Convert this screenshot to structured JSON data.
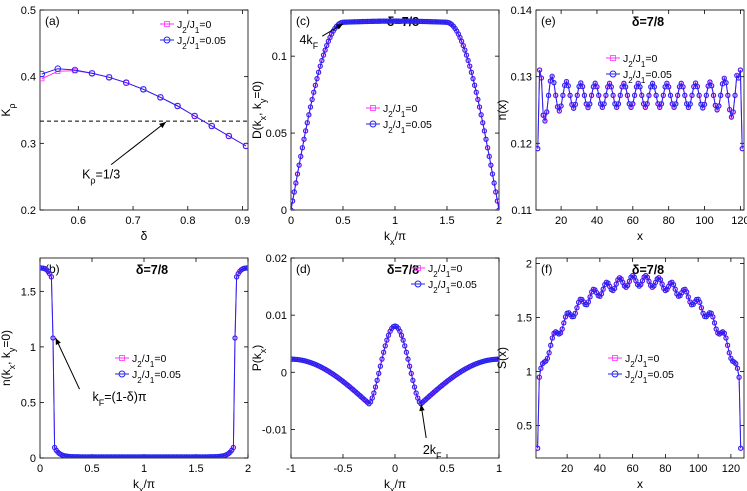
{
  "figure": {
    "series_colors": {
      "j0": "#ff33ff",
      "j05": "#2222ee"
    },
    "legend_labels": {
      "j0_html": "J<tspan baseline-shift='sub' font-size='8'>2</tspan>/J<tspan baseline-shift='sub' font-size='8'>1</tspan>=0",
      "j05_html": "J<tspan baseline-shift='sub' font-size='8'>2</tspan>/J<tspan baseline-shift='sub' font-size='8'>1</tspan>=0.05"
    }
  },
  "chart_data": [
    {
      "id": "a",
      "panel_label": "(a)",
      "title": "",
      "type": "line",
      "xlabel": "δ",
      "ylabel_html": "K<tspan baseline-shift='sub' font-size='9'>ρ</tspan>",
      "xlim": [
        0.53,
        0.91
      ],
      "ylim": [
        0.2,
        0.5
      ],
      "xticks": [
        0.6,
        0.7,
        0.8,
        0.9
      ],
      "xticklabels": [
        "0.6",
        "0.7",
        "0.8",
        "0.9"
      ],
      "yticks": [
        0.2,
        0.3,
        0.4,
        0.5
      ],
      "yticklabels": [
        "0.2",
        "0.3",
        "0.4",
        "0.5"
      ],
      "hline": 0.3333,
      "series": [
        {
          "name": "J2/J1=0",
          "x": [
            0.5333,
            0.5625,
            0.5938,
            0.625,
            0.6563,
            0.6875,
            0.7188,
            0.75,
            0.7813,
            0.8125,
            0.8438,
            0.875,
            0.9063
          ],
          "y": [
            0.397,
            0.408,
            0.409,
            0.405,
            0.399,
            0.391,
            0.381,
            0.369,
            0.356,
            0.341,
            0.326,
            0.311,
            0.296
          ]
        },
        {
          "name": "J2/J1=0.05",
          "x": [
            0.5333,
            0.5625,
            0.5938,
            0.625,
            0.6563,
            0.6875,
            0.7188,
            0.75,
            0.7813,
            0.8125,
            0.8438,
            0.875,
            0.9063
          ],
          "y": [
            0.404,
            0.412,
            0.41,
            0.405,
            0.399,
            0.391,
            0.381,
            0.369,
            0.356,
            0.341,
            0.326,
            0.311,
            0.296
          ]
        }
      ],
      "annotation": {
        "text_html": "K<tspan baseline-shift='sub' font-size='9'>ρ</tspan>=1/3",
        "x_from": 0.66,
        "y_from": 0.268,
        "x_to": 0.76,
        "y_to": 0.332
      }
    },
    {
      "id": "b",
      "panel_label": "(b)",
      "title": "δ=7/8",
      "type": "line",
      "xlabel_html": "k<tspan baseline-shift='sub' font-size='9'>x</tspan>/π",
      "ylabel_html": "n(k<tspan baseline-shift='sub' font-size='9'>x</tspan>, k<tspan baseline-shift='sub' font-size='9'>y</tspan>=0)",
      "xlim": [
        0,
        2
      ],
      "ylim": [
        0,
        1.8
      ],
      "xticks": [
        0,
        0.5,
        1,
        1.5,
        2
      ],
      "xticklabels": [
        "0",
        "0.5",
        "1",
        "1.5",
        "2"
      ],
      "yticks": [
        0,
        0.5,
        1,
        1.5
      ],
      "yticklabels": [
        "0",
        "0.5",
        "1",
        "1.5"
      ],
      "series_kind": "momentum_distribution",
      "kF": 0.125,
      "annotation": {
        "text_html": "k<tspan baseline-shift='sub' font-size='9'>F</tspan>=(1-δ)π",
        "x_from": 0.38,
        "y_from": 0.62,
        "x_to": 0.15,
        "y_to": 1.08
      }
    },
    {
      "id": "c",
      "panel_label": "(c)",
      "title": "δ=7/8",
      "type": "line",
      "xlabel_html": "k<tspan baseline-shift='sub' font-size='9'>x</tspan>/π",
      "ylabel_html": "D(k<tspan baseline-shift='sub' font-size='9'>x</tspan>, k<tspan baseline-shift='sub' font-size='9'>y</tspan>=0)",
      "xlim": [
        0,
        2
      ],
      "ylim": [
        0,
        0.13
      ],
      "xticks": [
        0,
        0.5,
        1,
        1.5,
        2
      ],
      "xticklabels": [
        "0",
        "0.5",
        "1",
        "1.5",
        "2"
      ],
      "yticks": [
        0,
        0.05,
        0.1
      ],
      "yticklabels": [
        "0",
        "0.05",
        "0.1"
      ],
      "series_kind": "density_structure",
      "plateau": 0.122,
      "annotation": {
        "text_html": "4k<tspan baseline-shift='sub' font-size='9'>F</tspan>",
        "x_from": 0.3,
        "y_from": 0.113,
        "x_to": 0.5,
        "y_to": 0.121
      }
    },
    {
      "id": "d",
      "panel_label": "(d)",
      "title": "δ=7/8",
      "type": "line",
      "xlabel_html": "k<tspan baseline-shift='sub' font-size='9'>x</tspan>/π",
      "ylabel_html": "P(k<tspan baseline-shift='sub' font-size='9'>x</tspan>)",
      "xlim": [
        -1,
        1
      ],
      "ylim": [
        -0.015,
        0.02
      ],
      "xticks": [
        -1,
        -0.5,
        0,
        0.5,
        1
      ],
      "xticklabels": [
        "-1",
        "-0.5",
        "0",
        "0.5",
        "1"
      ],
      "yticks": [
        -0.01,
        0,
        0.01,
        0.02
      ],
      "yticklabels": [
        "-0.01",
        "0",
        "0.01",
        "0.02"
      ],
      "series_kind": "pair_correlation",
      "annotation": {
        "text_html": "2k<tspan baseline-shift='sub' font-size='9'>F</tspan>",
        "x_from": 0.3,
        "y_from": -0.0115,
        "x_to": 0.25,
        "y_to": -0.0056
      }
    },
    {
      "id": "e",
      "panel_label": "(e)",
      "title": "δ=7/8",
      "type": "line",
      "xlabel": "x",
      "ylabel": "n(x)",
      "xlim": [
        6,
        122
      ],
      "ylim": [
        0.11,
        0.14
      ],
      "xticks": [
        20,
        40,
        60,
        80,
        100,
        120
      ],
      "xticklabels": [
        "20",
        "40",
        "60",
        "80",
        "100",
        "120"
      ],
      "yticks": [
        0.11,
        0.12,
        0.13,
        0.14
      ],
      "yticklabels": [
        "0.11",
        "0.12",
        "0.13",
        "0.14"
      ],
      "series_kind": "density_profile"
    },
    {
      "id": "f",
      "panel_label": "(f)",
      "title": "δ=7/8",
      "type": "line",
      "xlabel": "x",
      "ylabel": "S(x)",
      "xlim": [
        1,
        128
      ],
      "ylim": [
        0.2,
        2.05
      ],
      "xticks": [
        20,
        40,
        60,
        80,
        100,
        120
      ],
      "xticklabels": [
        "20",
        "40",
        "60",
        "80",
        "100",
        "120"
      ],
      "yticks": [
        0.5,
        1,
        1.5,
        2
      ],
      "yticklabels": [
        "0.5",
        "1",
        "1.5",
        "2"
      ],
      "series_kind": "entanglement_entropy"
    }
  ]
}
